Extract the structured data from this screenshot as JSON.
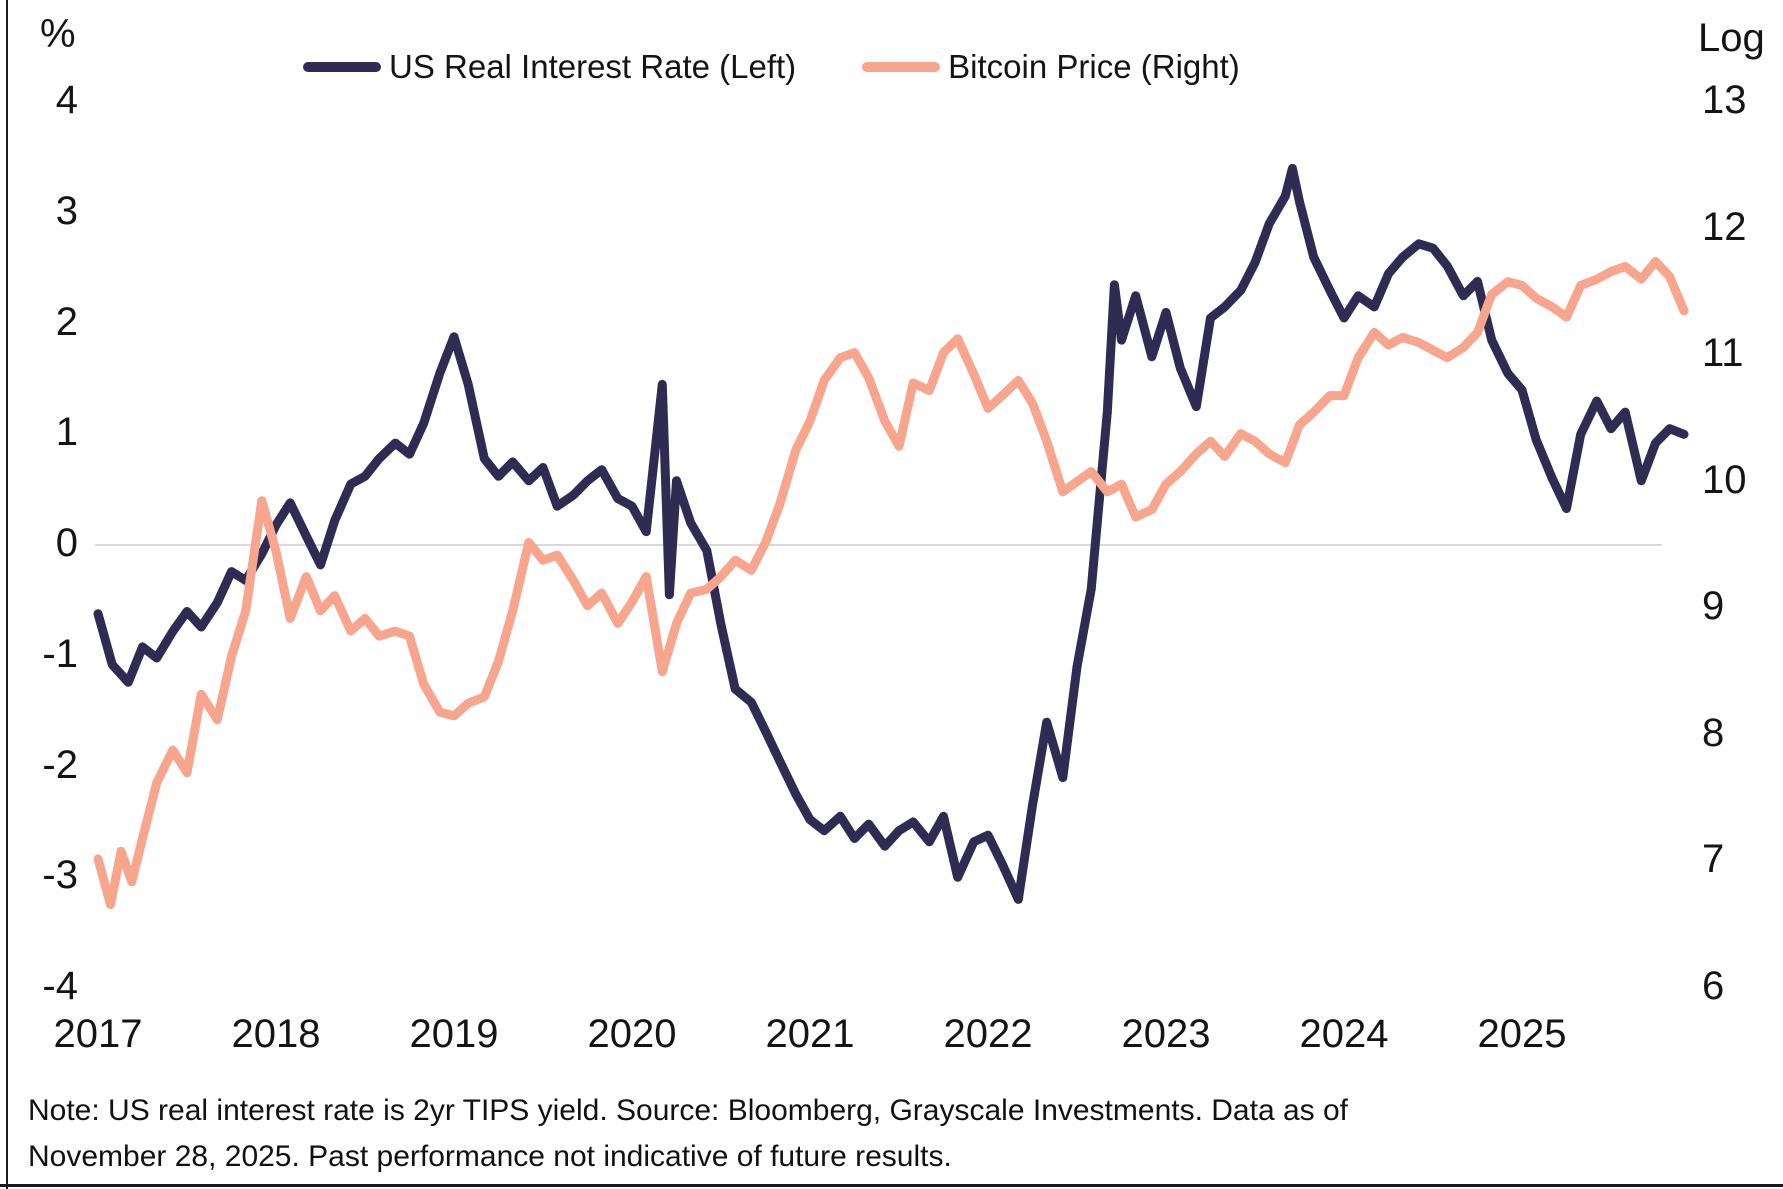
{
  "note": {
    "line1": "Note: US real interest rate is 2yr TIPS yield. Source: Bloomberg, Grayscale Investments. Data as of",
    "line2": "November 28, 2025. Past performance not indicative of future results."
  },
  "legend": [
    {
      "label": "US Real Interest Rate (Left)",
      "color": "#302B53"
    },
    {
      "label": "Bitcoin Price (Right)",
      "color": "#F8A58E"
    }
  ],
  "colors": {
    "real_rate_line": "#302B53",
    "bitcoin_line": "#F8A58E",
    "zero_gridline": "#D9D9D9",
    "text": "#141414",
    "background": "#FFFFFF"
  },
  "chart_data": {
    "type": "line",
    "title": "",
    "x_axis": {
      "label": "",
      "ticks": [
        2017,
        2018,
        2019,
        2020,
        2021,
        2022,
        2023,
        2024,
        2025
      ],
      "range": [
        2017.0,
        2025.95
      ]
    },
    "left_axis": {
      "label": "%",
      "ticks": [
        4,
        3,
        2,
        1,
        0,
        -1,
        -2,
        -3,
        -4
      ],
      "range": [
        -4,
        4
      ]
    },
    "right_axis": {
      "label": "Log",
      "ticks": [
        13,
        12,
        11,
        10,
        9,
        8,
        7,
        6
      ],
      "range": [
        6,
        13
      ]
    },
    "grid": "horizontal zero line only",
    "legend_position": "top-center",
    "series": [
      {
        "name": "US Real Interest Rate (Left)",
        "axis": "left",
        "color": "#302B53",
        "points": [
          [
            2017.0,
            -0.62
          ],
          [
            2017.08,
            -1.08
          ],
          [
            2017.17,
            -1.24
          ],
          [
            2017.25,
            -0.92
          ],
          [
            2017.33,
            -1.02
          ],
          [
            2017.42,
            -0.78
          ],
          [
            2017.5,
            -0.6
          ],
          [
            2017.58,
            -0.74
          ],
          [
            2017.67,
            -0.52
          ],
          [
            2017.75,
            -0.24
          ],
          [
            2017.83,
            -0.32
          ],
          [
            2017.92,
            -0.08
          ],
          [
            2018.0,
            0.18
          ],
          [
            2018.08,
            0.38
          ],
          [
            2018.17,
            0.08
          ],
          [
            2018.25,
            -0.18
          ],
          [
            2018.33,
            0.22
          ],
          [
            2018.42,
            0.55
          ],
          [
            2018.5,
            0.62
          ],
          [
            2018.58,
            0.78
          ],
          [
            2018.67,
            0.92
          ],
          [
            2018.75,
            0.82
          ],
          [
            2018.83,
            1.1
          ],
          [
            2018.92,
            1.55
          ],
          [
            2019.0,
            1.88
          ],
          [
            2019.08,
            1.45
          ],
          [
            2019.17,
            0.78
          ],
          [
            2019.25,
            0.62
          ],
          [
            2019.33,
            0.75
          ],
          [
            2019.42,
            0.58
          ],
          [
            2019.5,
            0.7
          ],
          [
            2019.58,
            0.35
          ],
          [
            2019.67,
            0.45
          ],
          [
            2019.75,
            0.58
          ],
          [
            2019.83,
            0.68
          ],
          [
            2019.92,
            0.42
          ],
          [
            2020.0,
            0.35
          ],
          [
            2020.08,
            0.12
          ],
          [
            2020.17,
            1.45
          ],
          [
            2020.21,
            -0.45
          ],
          [
            2020.25,
            0.58
          ],
          [
            2020.33,
            0.2
          ],
          [
            2020.42,
            -0.05
          ],
          [
            2020.5,
            -0.72
          ],
          [
            2020.58,
            -1.3
          ],
          [
            2020.67,
            -1.42
          ],
          [
            2020.75,
            -1.68
          ],
          [
            2020.83,
            -1.95
          ],
          [
            2020.92,
            -2.25
          ],
          [
            2021.0,
            -2.48
          ],
          [
            2021.08,
            -2.58
          ],
          [
            2021.17,
            -2.45
          ],
          [
            2021.25,
            -2.65
          ],
          [
            2021.33,
            -2.52
          ],
          [
            2021.42,
            -2.72
          ],
          [
            2021.5,
            -2.58
          ],
          [
            2021.58,
            -2.5
          ],
          [
            2021.67,
            -2.68
          ],
          [
            2021.75,
            -2.45
          ],
          [
            2021.83,
            -3.0
          ],
          [
            2021.92,
            -2.68
          ],
          [
            2022.0,
            -2.62
          ],
          [
            2022.08,
            -2.88
          ],
          [
            2022.17,
            -3.2
          ],
          [
            2022.25,
            -2.35
          ],
          [
            2022.33,
            -1.6
          ],
          [
            2022.42,
            -2.1
          ],
          [
            2022.5,
            -1.1
          ],
          [
            2022.58,
            -0.4
          ],
          [
            2022.67,
            1.2
          ],
          [
            2022.71,
            2.35
          ],
          [
            2022.75,
            1.85
          ],
          [
            2022.83,
            2.25
          ],
          [
            2022.92,
            1.7
          ],
          [
            2023.0,
            2.1
          ],
          [
            2023.08,
            1.6
          ],
          [
            2023.17,
            1.25
          ],
          [
            2023.25,
            2.05
          ],
          [
            2023.33,
            2.15
          ],
          [
            2023.42,
            2.3
          ],
          [
            2023.5,
            2.55
          ],
          [
            2023.58,
            2.9
          ],
          [
            2023.67,
            3.15
          ],
          [
            2023.71,
            3.4
          ],
          [
            2023.75,
            3.1
          ],
          [
            2023.83,
            2.6
          ],
          [
            2023.92,
            2.3
          ],
          [
            2024.0,
            2.05
          ],
          [
            2024.08,
            2.25
          ],
          [
            2024.17,
            2.15
          ],
          [
            2024.25,
            2.45
          ],
          [
            2024.33,
            2.6
          ],
          [
            2024.42,
            2.72
          ],
          [
            2024.5,
            2.68
          ],
          [
            2024.58,
            2.52
          ],
          [
            2024.67,
            2.25
          ],
          [
            2024.75,
            2.38
          ],
          [
            2024.83,
            1.85
          ],
          [
            2024.92,
            1.55
          ],
          [
            2025.0,
            1.4
          ],
          [
            2025.08,
            0.95
          ],
          [
            2025.17,
            0.6
          ],
          [
            2025.25,
            0.33
          ],
          [
            2025.33,
            1.0
          ],
          [
            2025.42,
            1.3
          ],
          [
            2025.5,
            1.05
          ],
          [
            2025.58,
            1.2
          ],
          [
            2025.67,
            0.58
          ],
          [
            2025.75,
            0.92
          ],
          [
            2025.83,
            1.05
          ],
          [
            2025.91,
            1.0
          ]
        ]
      },
      {
        "name": "Bitcoin Price (Right)",
        "axis": "right",
        "color": "#F8A58E",
        "points": [
          [
            2017.0,
            7.02
          ],
          [
            2017.07,
            6.66
          ],
          [
            2017.13,
            7.08
          ],
          [
            2017.19,
            6.84
          ],
          [
            2017.25,
            7.18
          ],
          [
            2017.33,
            7.62
          ],
          [
            2017.42,
            7.88
          ],
          [
            2017.5,
            7.7
          ],
          [
            2017.58,
            8.32
          ],
          [
            2017.67,
            8.12
          ],
          [
            2017.75,
            8.62
          ],
          [
            2017.83,
            8.98
          ],
          [
            2017.92,
            9.85
          ],
          [
            2018.0,
            9.45
          ],
          [
            2018.08,
            8.92
          ],
          [
            2018.17,
            9.25
          ],
          [
            2018.25,
            8.98
          ],
          [
            2018.33,
            9.1
          ],
          [
            2018.42,
            8.82
          ],
          [
            2018.5,
            8.92
          ],
          [
            2018.58,
            8.78
          ],
          [
            2018.67,
            8.82
          ],
          [
            2018.75,
            8.78
          ],
          [
            2018.83,
            8.4
          ],
          [
            2018.92,
            8.18
          ],
          [
            2019.0,
            8.15
          ],
          [
            2019.08,
            8.25
          ],
          [
            2019.17,
            8.3
          ],
          [
            2019.25,
            8.58
          ],
          [
            2019.33,
            8.98
          ],
          [
            2019.42,
            9.52
          ],
          [
            2019.5,
            9.38
          ],
          [
            2019.58,
            9.42
          ],
          [
            2019.67,
            9.22
          ],
          [
            2019.75,
            9.02
          ],
          [
            2019.83,
            9.12
          ],
          [
            2019.92,
            8.88
          ],
          [
            2020.0,
            9.05
          ],
          [
            2020.08,
            9.25
          ],
          [
            2020.17,
            8.5
          ],
          [
            2020.25,
            8.88
          ],
          [
            2020.33,
            9.12
          ],
          [
            2020.42,
            9.15
          ],
          [
            2020.5,
            9.25
          ],
          [
            2020.58,
            9.38
          ],
          [
            2020.67,
            9.3
          ],
          [
            2020.75,
            9.52
          ],
          [
            2020.83,
            9.82
          ],
          [
            2020.92,
            10.25
          ],
          [
            2021.0,
            10.48
          ],
          [
            2021.08,
            10.8
          ],
          [
            2021.17,
            10.98
          ],
          [
            2021.25,
            11.02
          ],
          [
            2021.33,
            10.82
          ],
          [
            2021.42,
            10.48
          ],
          [
            2021.5,
            10.28
          ],
          [
            2021.58,
            10.78
          ],
          [
            2021.67,
            10.72
          ],
          [
            2021.75,
            11.02
          ],
          [
            2021.83,
            11.13
          ],
          [
            2021.92,
            10.85
          ],
          [
            2022.0,
            10.58
          ],
          [
            2022.08,
            10.68
          ],
          [
            2022.17,
            10.8
          ],
          [
            2022.25,
            10.62
          ],
          [
            2022.33,
            10.32
          ],
          [
            2022.42,
            9.92
          ],
          [
            2022.5,
            10.0
          ],
          [
            2022.58,
            10.08
          ],
          [
            2022.67,
            9.92
          ],
          [
            2022.75,
            9.98
          ],
          [
            2022.83,
            9.72
          ],
          [
            2022.92,
            9.78
          ],
          [
            2023.0,
            9.98
          ],
          [
            2023.08,
            10.08
          ],
          [
            2023.17,
            10.22
          ],
          [
            2023.25,
            10.32
          ],
          [
            2023.33,
            10.2
          ],
          [
            2023.42,
            10.38
          ],
          [
            2023.5,
            10.32
          ],
          [
            2023.58,
            10.22
          ],
          [
            2023.67,
            10.15
          ],
          [
            2023.75,
            10.45
          ],
          [
            2023.83,
            10.55
          ],
          [
            2023.92,
            10.68
          ],
          [
            2024.0,
            10.68
          ],
          [
            2024.08,
            10.98
          ],
          [
            2024.17,
            11.18
          ],
          [
            2024.25,
            11.08
          ],
          [
            2024.33,
            11.14
          ],
          [
            2024.42,
            11.1
          ],
          [
            2024.5,
            11.04
          ],
          [
            2024.58,
            10.98
          ],
          [
            2024.67,
            11.06
          ],
          [
            2024.75,
            11.18
          ],
          [
            2024.83,
            11.48
          ],
          [
            2024.92,
            11.58
          ],
          [
            2025.0,
            11.55
          ],
          [
            2025.08,
            11.45
          ],
          [
            2025.17,
            11.38
          ],
          [
            2025.25,
            11.3
          ],
          [
            2025.33,
            11.55
          ],
          [
            2025.42,
            11.6
          ],
          [
            2025.5,
            11.66
          ],
          [
            2025.58,
            11.7
          ],
          [
            2025.67,
            11.6
          ],
          [
            2025.75,
            11.74
          ],
          [
            2025.83,
            11.62
          ],
          [
            2025.91,
            11.35
          ]
        ]
      }
    ]
  }
}
